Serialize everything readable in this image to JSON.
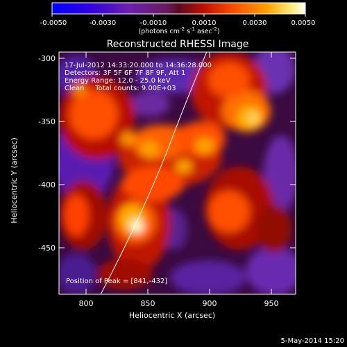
{
  "colorbar": {
    "tick_labels": [
      "-0.0050",
      "-0.0030",
      "-0.0010",
      "0.0010",
      "0.0030",
      "0.0050"
    ],
    "units_prefix": "(photons cm",
    "units_sup1": "-2",
    "units_mid": " s",
    "units_sup2": "-1",
    "units_mid2": " asec",
    "units_sup3": "-2",
    "units_suffix": ")",
    "colors": [
      "#0000ff",
      "#3300dd",
      "#5a1ab0",
      "#7a2a9a",
      "#7a1a4a",
      "#a01010",
      "#d02000",
      "#ff6000",
      "#ffa000",
      "#ffe060",
      "#ffffff"
    ]
  },
  "image": {
    "title": "Reconstructed RHESSI Image",
    "info_lines": [
      "17-Jul-2012 14:33:20.000 to 14:36:28.000",
      "Detectors: 3F 5F 6F 7F 8F 9F, Att 1",
      "Energy Range: 12.0 - 25.0 keV",
      "Clean     Total counts: 9.00E+03"
    ],
    "peak_label": "Position of Peak = [841,-432]",
    "xlabel": "Heliocentric X (arcsec)",
    "ylabel": "Heliocentric Y (arcsec)",
    "x_ticks": [
      "800",
      "850",
      "900",
      "950"
    ],
    "y_ticks": [
      "-300",
      "-350",
      "-400",
      "-450"
    ],
    "xlim": [
      773,
      965
    ],
    "ylim": [
      -488,
      -295
    ],
    "footer_date": "5-May-2014 15:20"
  }
}
